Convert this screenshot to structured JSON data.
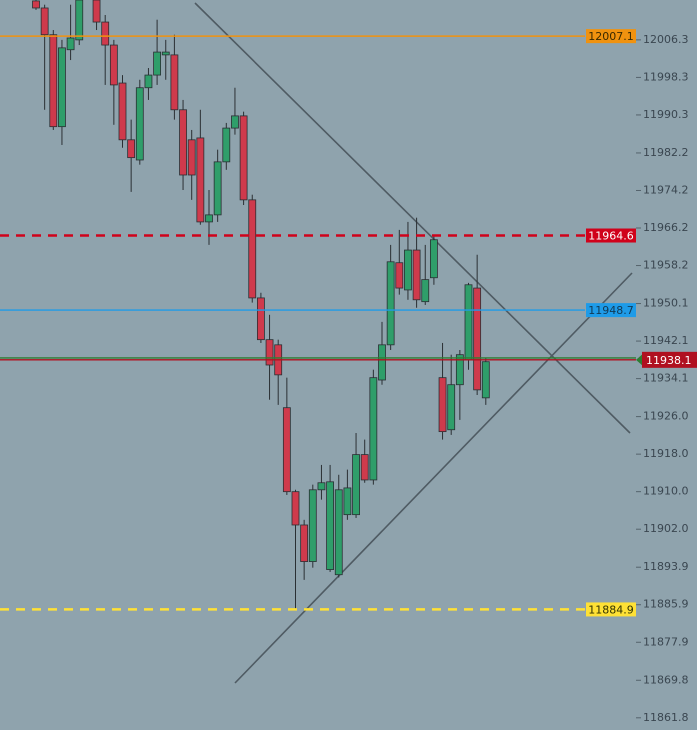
{
  "chart_data": {
    "type": "candlestick",
    "ylim": [
      11859.2,
      12014.8
    ],
    "yticks": [
      12006.3,
      11998.3,
      11990.3,
      11982.2,
      11974.2,
      11966.2,
      11958.2,
      11950.1,
      11942.1,
      11934.1,
      {
        "value": 11926.0,
        "label": "11926.0"
      },
      {
        "value": 11918.0,
        "label": "11918.0"
      },
      {
        "value": 11910.0,
        "label": "11910.0"
      },
      {
        "value": 11902.0,
        "label": "11902.0"
      },
      11893.9,
      11885.9,
      11877.9,
      11869.8,
      11861.8
    ],
    "up_color": "#2f9e6a",
    "down_color": "#cf3a4c",
    "open": [
      12014.6,
      12013.1,
      12007.4,
      11987.8,
      12004.2,
      12006.3,
      null,
      12014.8,
      12010.1,
      12005.2,
      11997.1,
      11985.0,
      11980.7,
      11996.1,
      11998.8,
      12003.1,
      12003.1,
      11991.4,
      11985.0,
      11985.4,
      11967.5,
      11969.0,
      11980.3,
      11987.5,
      11990.1,
      11972.2,
      11951.3,
      11942.4,
      11941.3,
      11927.9,
      11910.0,
      11902.9,
      11895.1,
      11910.4,
      11893.4,
      11892.3,
      11905.1,
      11905.1,
      11917.9,
      11912.5,
      11933.8,
      11941.3,
      11958.8,
      11953.0,
      11961.5,
      11950.5,
      11955.6,
      11934.3,
      11923.2,
      11932.8,
      11938.1,
      11953.4,
      11930.0
    ],
    "high": [
      12014.8,
      12013.8,
      12008.4,
      12006.3,
      12013.8,
      12014.8,
      null,
      12014.8,
      12011.6,
      12006.3,
      11998.8,
      11989.3,
      11997.8,
      12000.3,
      12010.6,
      12006.3,
      12007.4,
      11993.5,
      11987.1,
      11991.4,
      11974.3,
      11982.9,
      11988.6,
      11996.1,
      11991.0,
      11973.3,
      11952.4,
      11947.7,
      11942.4,
      11934.3,
      11910.4,
      11904.0,
      11911.5,
      11915.7,
      11915.7,
      11913.6,
      11914.7,
      11922.5,
      11921.1,
      11936.0,
      11946.2,
      11962.6,
      11965.8,
      11967.5,
      11968.4,
      11962.6,
      11964.5,
      11941.7,
      11939.2,
      11940.2,
      11954.5,
      11960.5,
      11938.5
    ],
    "low": [
      12012.7,
      11991.4,
      11987.1,
      11983.9,
      12002.0,
      12005.2,
      null,
      12008.4,
      11996.7,
      11988.2,
      11983.3,
      11973.9,
      11979.7,
      11993.5,
      11996.7,
      11997.8,
      11989.3,
      11974.3,
      11972.2,
      11966.9,
      11962.6,
      11967.5,
      11978.6,
      11986.1,
      11971.1,
      11950.3,
      11941.7,
      11929.6,
      11928.5,
      11909.3,
      11884.8,
      11891.2,
      11893.8,
      11908.3,
      11892.9,
      11891.7,
      11904.0,
      11904.4,
      11911.9,
      11911.5,
      11932.8,
      11940.2,
      11952.0,
      11950.9,
      11949.2,
      11949.8,
      11954.1,
      11921.1,
      11922.1,
      11925.3,
      11936.0,
      11930.6,
      11928.5
    ],
    "close": [
      12013.1,
      12007.4,
      11987.8,
      12004.6,
      12006.7,
      12014.8,
      null,
      12010.1,
      12005.2,
      11996.7,
      11985.0,
      11981.2,
      11996.1,
      11998.8,
      12003.7,
      12003.7,
      11991.4,
      11977.5,
      11977.5,
      11967.5,
      11969.0,
      11980.3,
      11987.5,
      11990.1,
      11972.2,
      11951.3,
      11942.4,
      11937.0,
      11934.9,
      11910.0,
      11902.9,
      11895.1,
      11910.4,
      11911.9,
      11912.1,
      11910.4,
      11910.8,
      11917.9,
      11912.5,
      11934.3,
      11941.3,
      11959.0,
      11953.4,
      11961.5,
      11950.9,
      11955.2,
      11963.7,
      11922.8,
      11932.8,
      11939.2,
      11954.1,
      11931.7,
      11937.7
    ],
    "levels": [
      {
        "value": 12007.1,
        "color": "#f0920f",
        "dashed": false,
        "text_color": "#3a2a00"
      },
      {
        "value": 11964.6,
        "color": "#d0021b",
        "dashed": true,
        "text_color": "#ffffff"
      },
      {
        "value": 11948.7,
        "color": "#1e9be8",
        "dashed": false,
        "text_color": "#123a55"
      },
      {
        "value": 11938.5,
        "color": "#2e7d32",
        "dashed": false
      },
      {
        "value": 11938.1,
        "color": "#b01020",
        "dashed": false,
        "text_color": "#ffffff",
        "current": true
      },
      {
        "value": 11884.9,
        "color": "#ffe135",
        "dashed": true,
        "text_color": "#333300"
      }
    ]
  }
}
